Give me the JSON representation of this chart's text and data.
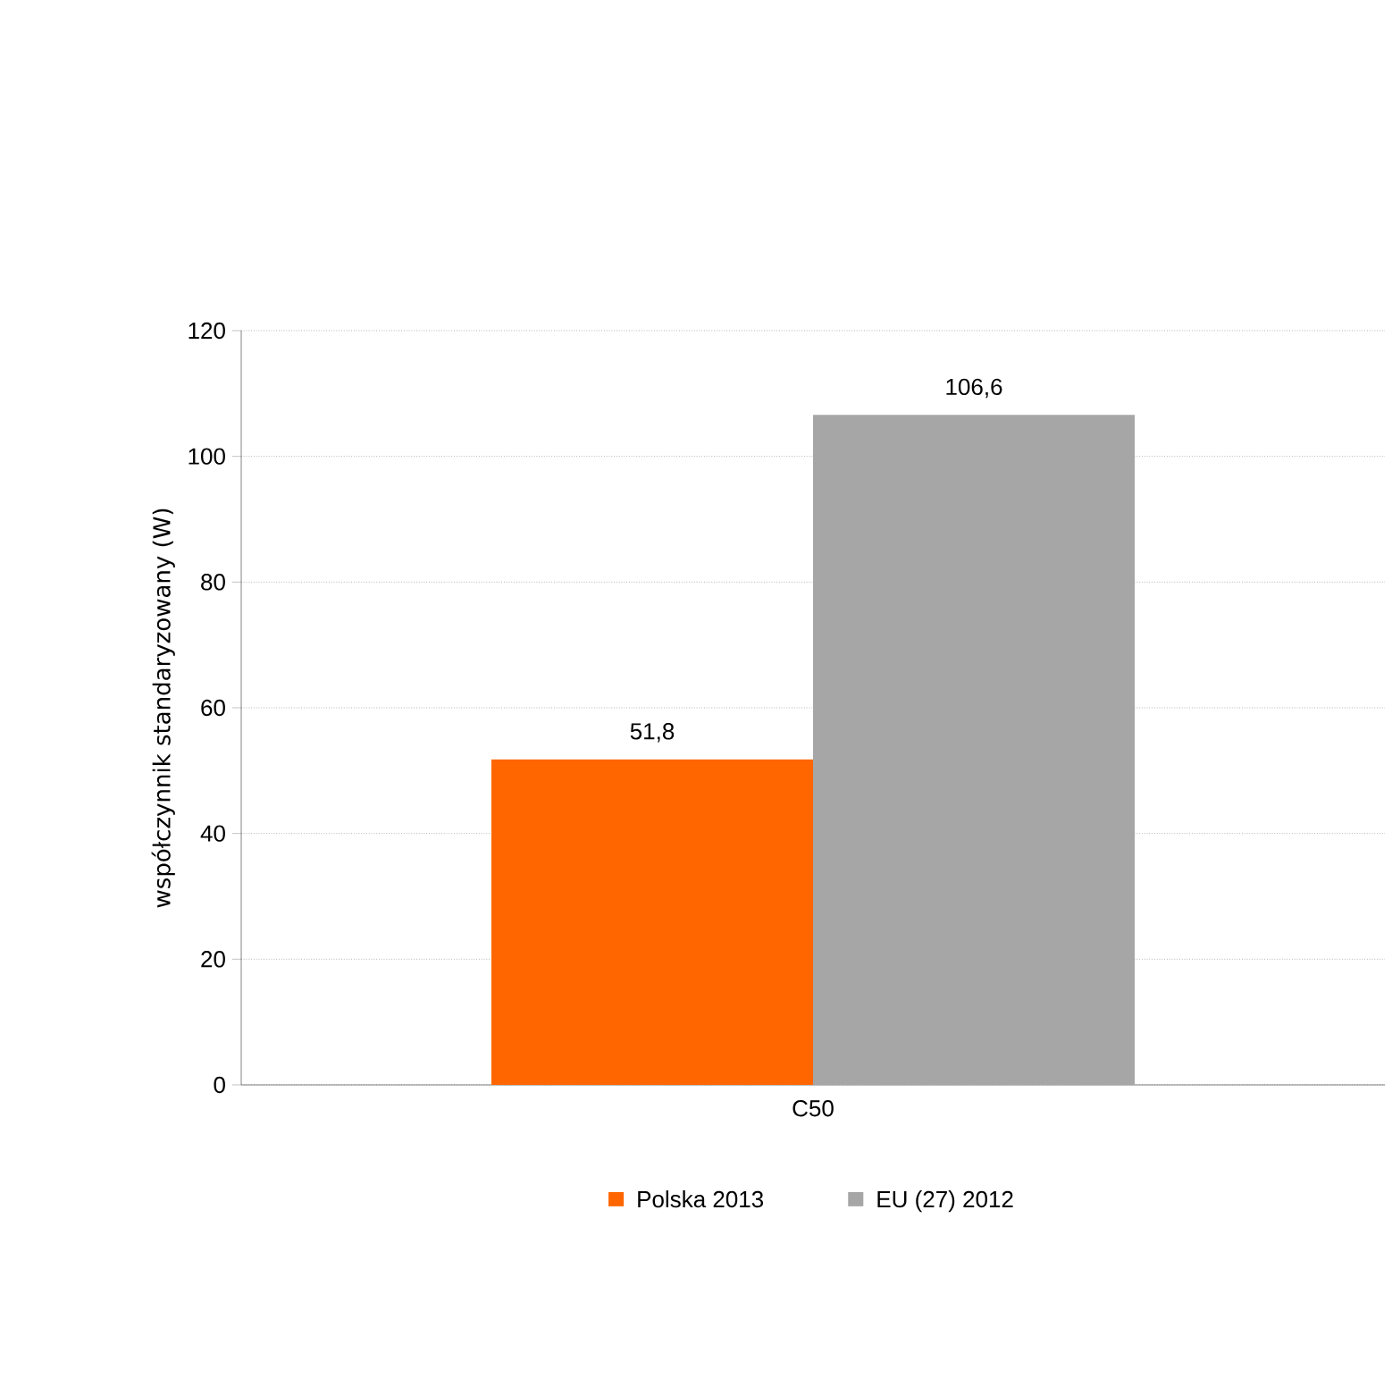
{
  "chart_data": {
    "type": "bar",
    "ylabel": "współczynnik standaryzowany (W)",
    "categories": [
      "C50"
    ],
    "series": [
      {
        "name": "Polska 2013",
        "color": "#ff6600",
        "values": [
          51.8
        ],
        "value_labels": [
          "51,8"
        ]
      },
      {
        "name": "EU (27) 2012",
        "color": "#a6a6a6",
        "values": [
          106.6
        ],
        "value_labels": [
          "106,6"
        ]
      }
    ],
    "ylim": [
      0,
      120
    ],
    "yticks": [
      0,
      20,
      40,
      60,
      80,
      100,
      120
    ],
    "grid": "y",
    "legend": "bottom"
  }
}
